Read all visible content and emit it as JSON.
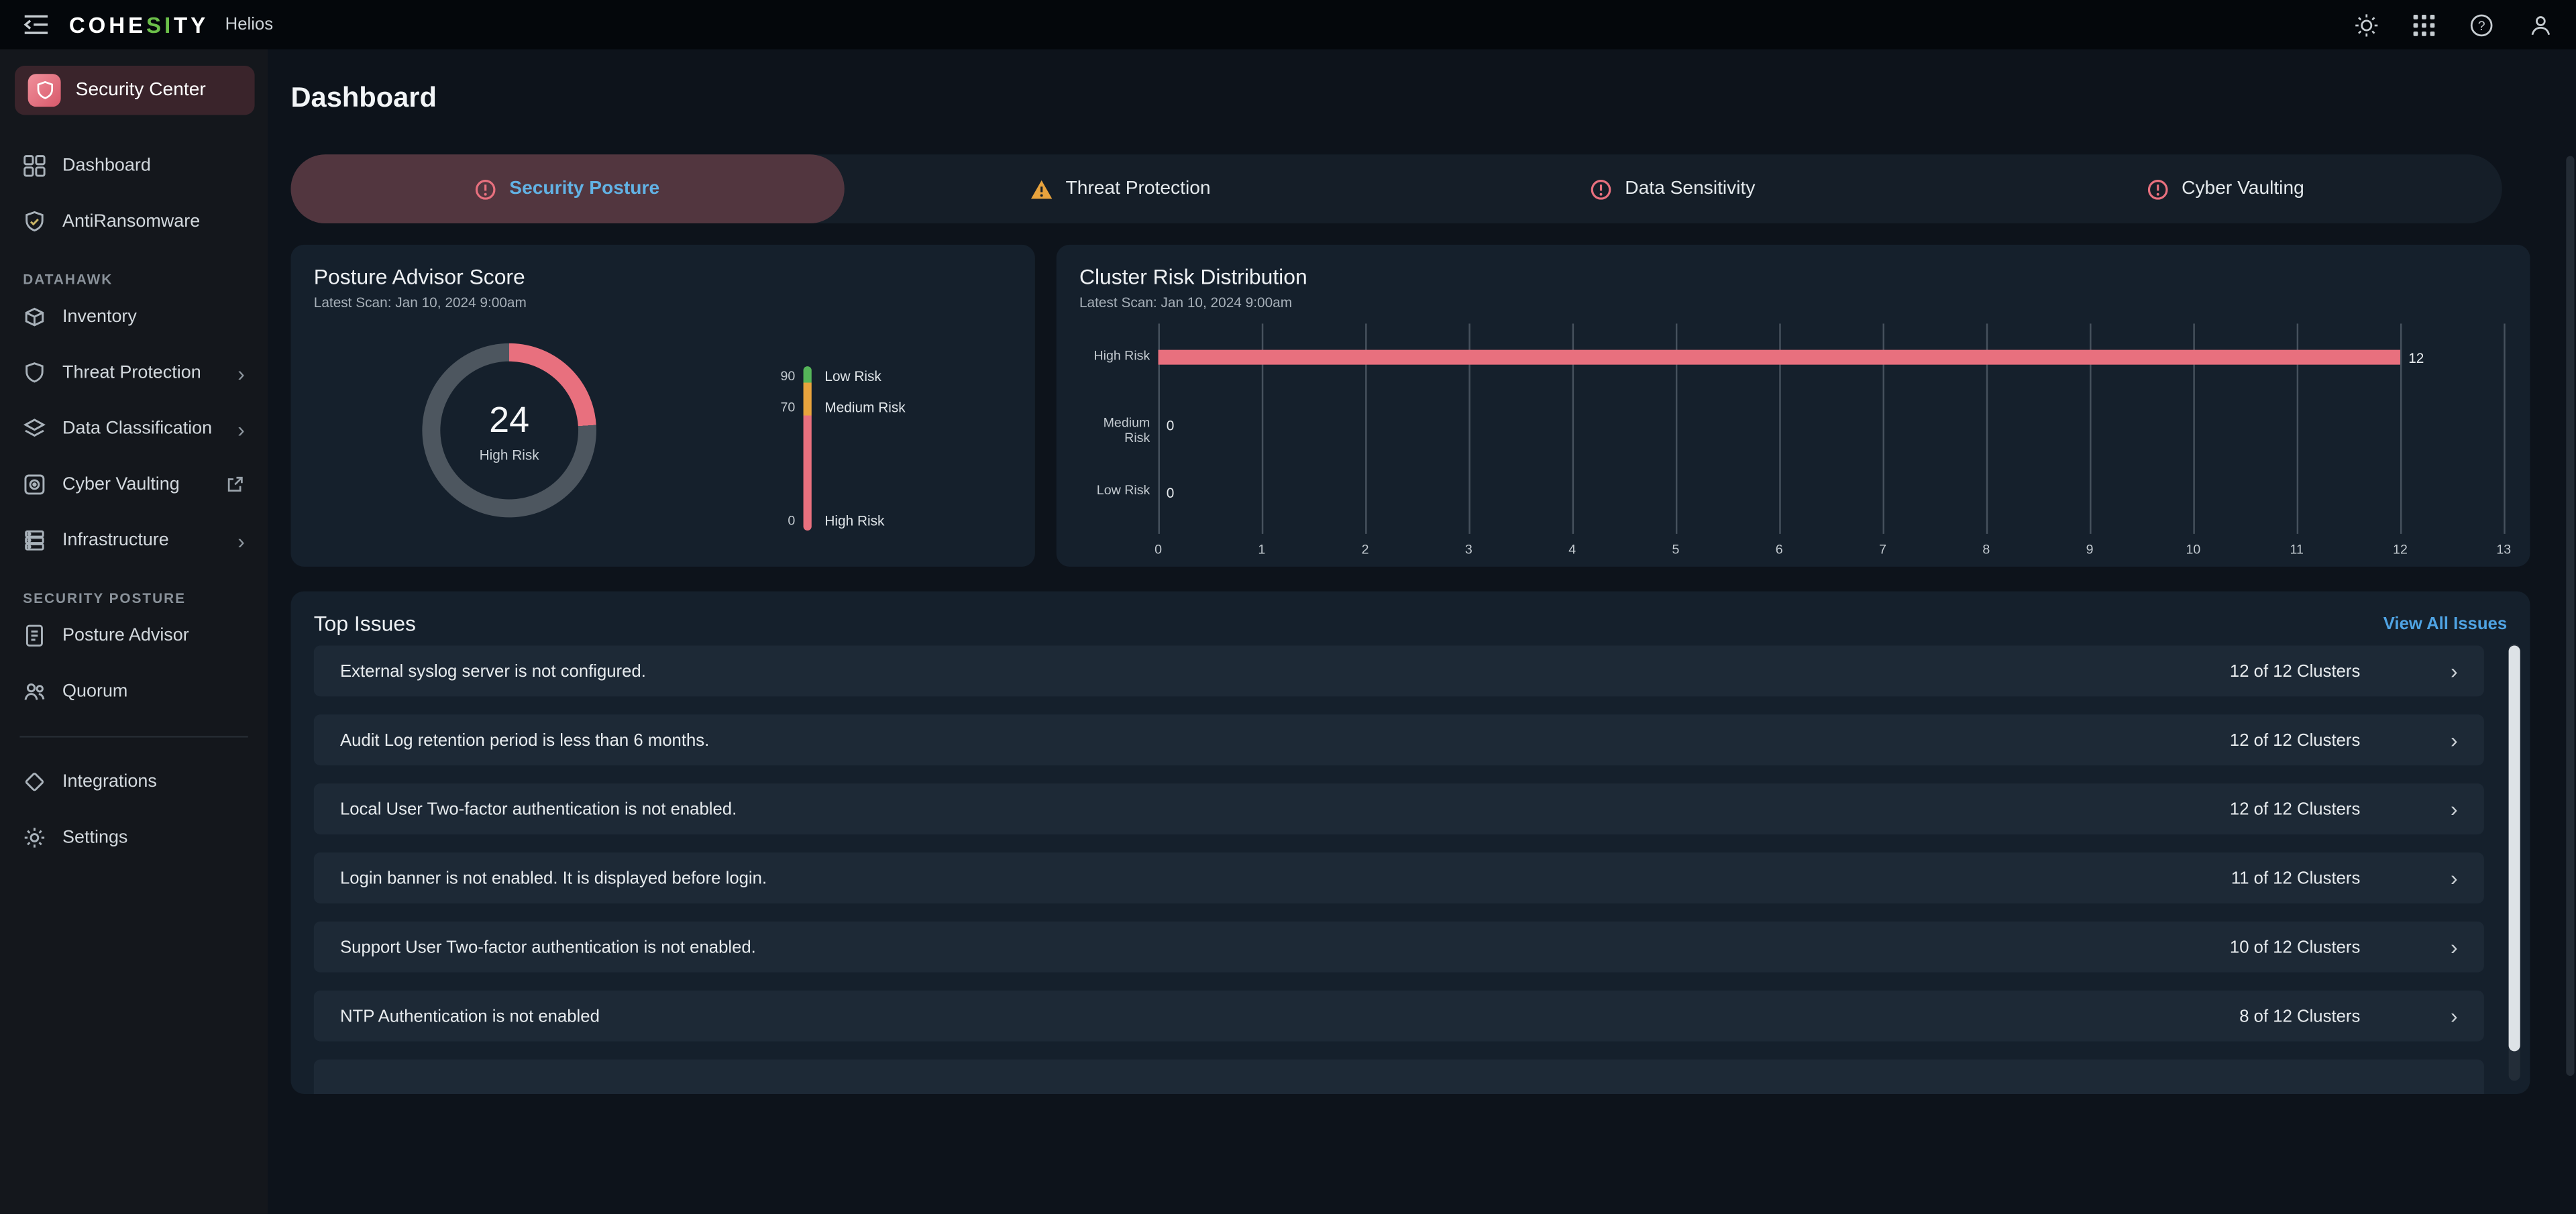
{
  "topbar": {
    "brand_prefix": "COHE",
    "brand_accent": "SI",
    "brand_suffix": "TY",
    "product": "Helios"
  },
  "sidebar": {
    "app": {
      "label": "Security Center"
    },
    "items": [
      {
        "label": "Dashboard"
      },
      {
        "label": "AntiRansomware"
      }
    ],
    "sections": [
      {
        "title": "DATAHAWK",
        "items": [
          {
            "label": "Inventory"
          },
          {
            "label": "Threat Protection"
          },
          {
            "label": "Data Classification"
          },
          {
            "label": "Cyber Vaulting"
          },
          {
            "label": "Infrastructure"
          }
        ]
      },
      {
        "title": "SECURITY POSTURE",
        "items": [
          {
            "label": "Posture Advisor"
          },
          {
            "label": "Quorum"
          }
        ]
      }
    ],
    "footer_items": [
      {
        "label": "Integrations"
      },
      {
        "label": "Settings"
      }
    ]
  },
  "page": {
    "title": "Dashboard"
  },
  "tabs": [
    {
      "label": "Security Posture",
      "icon": "error",
      "active": true
    },
    {
      "label": "Threat Protection",
      "icon": "warning",
      "active": false
    },
    {
      "label": "Data Sensitivity",
      "icon": "error",
      "active": false
    },
    {
      "label": "Cyber Vaulting",
      "icon": "error",
      "active": false
    }
  ],
  "chart_data": [
    {
      "type": "gauge",
      "title": "Posture Advisor Score",
      "subtitle": "Latest Scan: Jan 10, 2024 9:00am",
      "score": 24,
      "max": 100,
      "score_label": "24",
      "risk_label": "High Risk",
      "colors": {
        "arc": "#e8707e",
        "track": "#4d565f"
      },
      "scale": {
        "ticks": [
          {
            "value": "90"
          },
          {
            "value": "70"
          },
          {
            "value": "0"
          }
        ],
        "bands": [
          {
            "label": "Low Risk",
            "color": "#55b559",
            "from": 90,
            "to": 100
          },
          {
            "label": "Medium Risk",
            "color": "#e8a33d",
            "from": 70,
            "to": 90
          },
          {
            "label": "High Risk",
            "color": "#e8707e",
            "from": 0,
            "to": 70
          }
        ]
      }
    },
    {
      "type": "bar",
      "orientation": "horizontal",
      "title": "Cluster Risk Distribution",
      "subtitle": "Latest Scan: Jan 10, 2024 9:00am",
      "categories": [
        "High Risk",
        "Medium Risk",
        "Low Risk"
      ],
      "values": [
        12,
        0,
        0
      ],
      "value_labels": [
        "12",
        "0",
        "0"
      ],
      "xlim": [
        0,
        13
      ],
      "xticks": [
        "0",
        "1",
        "2",
        "3",
        "4",
        "5",
        "6",
        "7",
        "8",
        "9",
        "10",
        "11",
        "12",
        "13"
      ],
      "bar_color": "#e8707e",
      "grid": true,
      "legend": "none"
    }
  ],
  "top_issues": {
    "title": "Top Issues",
    "link_label": "View All Issues",
    "rows": [
      {
        "text": "External syslog server is not configured.",
        "clusters": "12 of 12 Clusters"
      },
      {
        "text": "Audit Log retention period is less than 6 months.",
        "clusters": "12 of 12 Clusters"
      },
      {
        "text": "Local User Two-factor authentication is not enabled.",
        "clusters": "12 of 12 Clusters"
      },
      {
        "text": "Login banner is not enabled. It is displayed before login.",
        "clusters": "11 of 12 Clusters"
      },
      {
        "text": "Support User Two-factor authentication is not enabled.",
        "clusters": "10 of 12 Clusters"
      },
      {
        "text": "NTP Authentication is not enabled",
        "clusters": "8 of 12 Clusters"
      }
    ]
  },
  "colors": {
    "accent_pink": "#e8707e",
    "accent_green": "#6cc04a",
    "warning_orange": "#e8a33d",
    "link_blue": "#4fa3e3",
    "active_tab_text": "#62b2e4",
    "active_tab_bg": "#52363f"
  }
}
